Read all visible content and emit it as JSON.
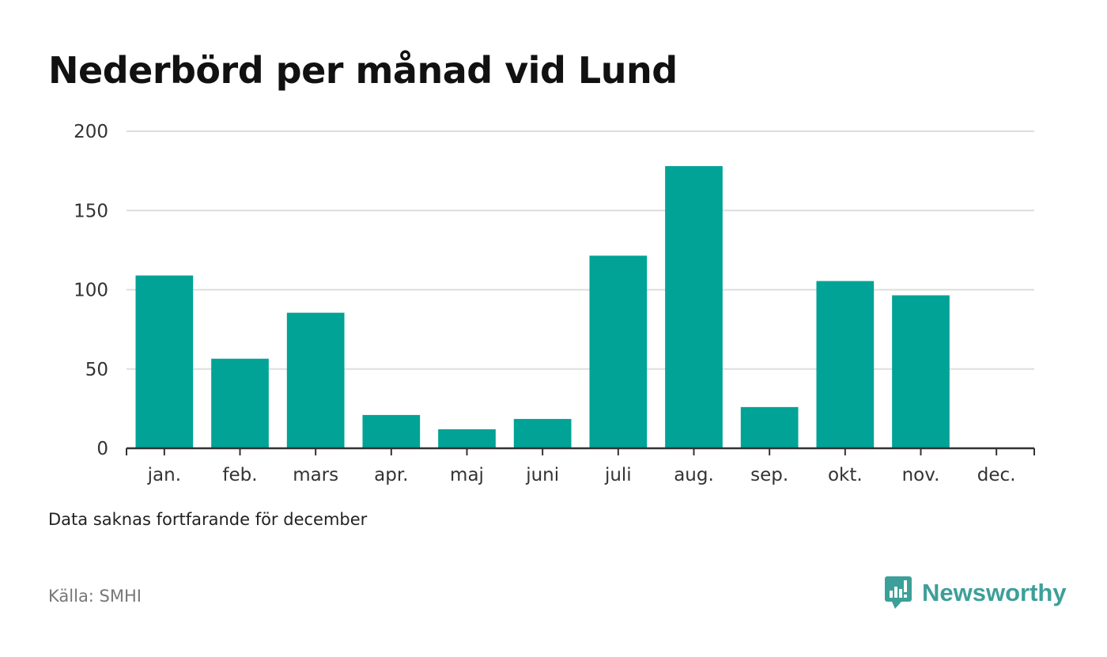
{
  "title": "Nederbörd per månad vid Lund",
  "note": "Data saknas fortfarande för december",
  "source": "Källa: SMHI",
  "brand": {
    "name": "Newsworthy",
    "icon": "newsworthy-logo-icon"
  },
  "colors": {
    "bar": "#00a396",
    "grid": "#dddddd",
    "axis": "#333333",
    "brand": "#3d9f99"
  },
  "chart_data": {
    "type": "bar",
    "title": "Nederbörd per månad vid Lund",
    "xlabel": "",
    "ylabel": "",
    "categories": [
      "jan.",
      "feb.",
      "mars",
      "apr.",
      "maj",
      "juni",
      "juli",
      "aug.",
      "sep.",
      "okt.",
      "nov.",
      "dec."
    ],
    "values": [
      109,
      56.5,
      85.5,
      21,
      12,
      18.5,
      121.5,
      178,
      26,
      105.5,
      96.5,
      null
    ],
    "ylim": [
      0,
      200
    ],
    "yticks": [
      0,
      50,
      100,
      150,
      200
    ],
    "grid": true,
    "legend": "none"
  }
}
